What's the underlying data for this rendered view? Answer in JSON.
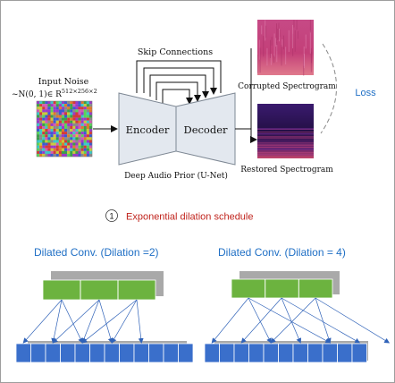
{
  "input_noise": {
    "label": "Input Noise",
    "formula_prefix": "~N(0, 1)∈ R",
    "formula_exponent": "512×256×2"
  },
  "network": {
    "skip_connections": "Skip Connections",
    "encoder": "Encoder",
    "decoder": "Decoder",
    "caption": "Deep Audio Prior (U-Net)"
  },
  "outputs": {
    "corrupted": "Corrupted Spectrogram",
    "restored": "Restored Spectrogram",
    "loss": "Loss"
  },
  "schedule": {
    "number": "1",
    "label": "Exponential dilation schedule"
  },
  "dilated_left": {
    "title": "Dilated Conv.  (Dilation =2)"
  },
  "dilated_right": {
    "title": "Dilated Conv.  (Dilation = 4)"
  },
  "colors": {
    "blue_title": "#1f6fc5",
    "red_text": "#c0241d",
    "green_cell": "#6cb33f",
    "blue_cell": "#3a6fcb",
    "encoder_fill": "#e2e8ef",
    "corrupted_spec": "#c4457f",
    "restored_spec": "#2b1452"
  }
}
